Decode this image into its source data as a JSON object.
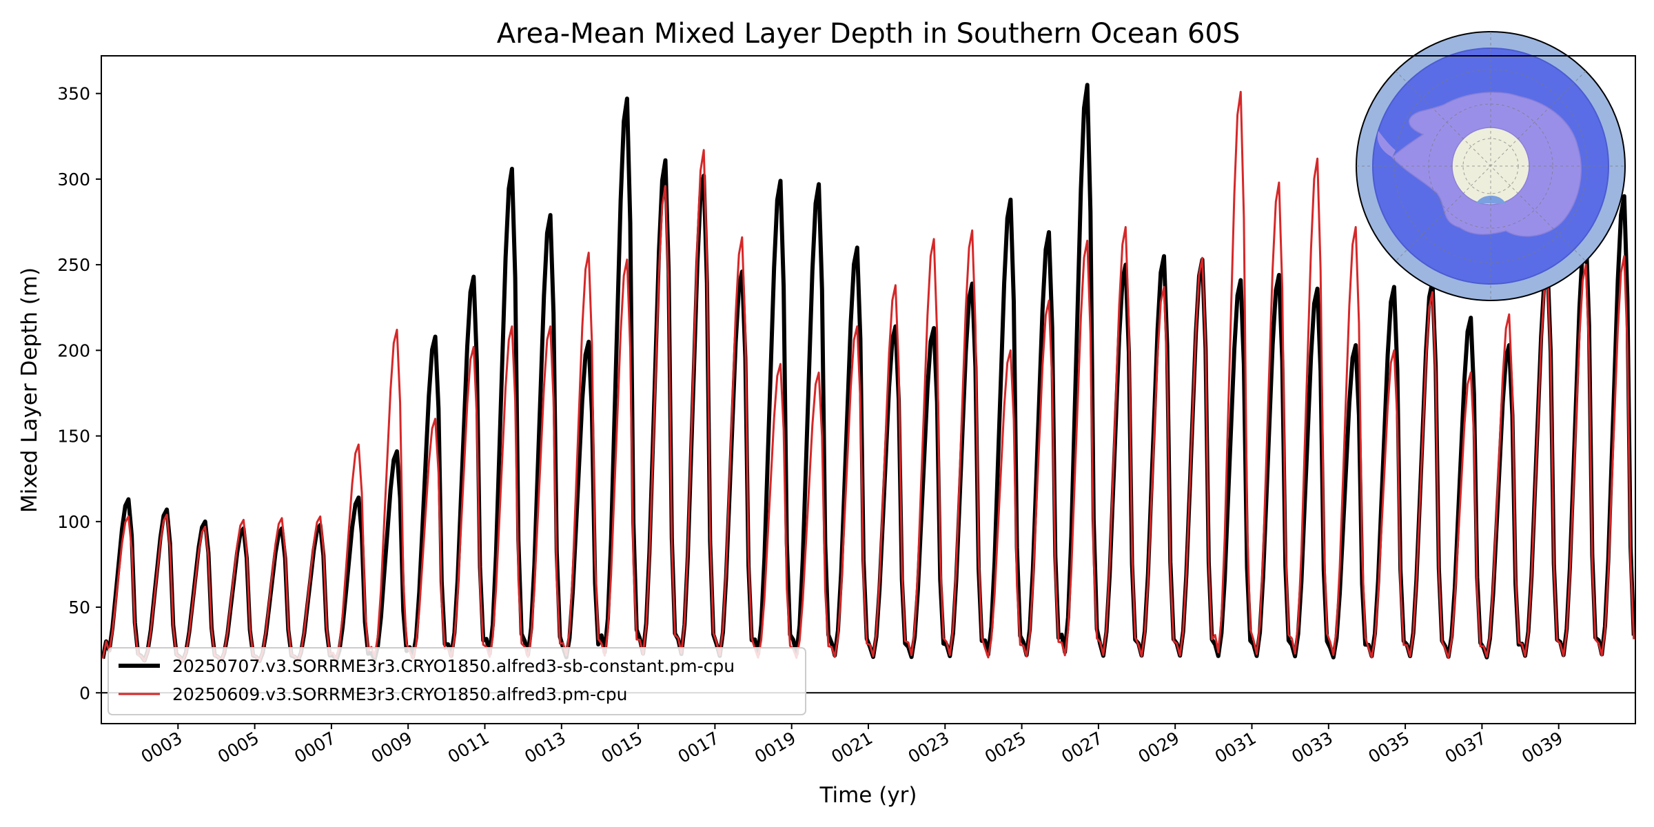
{
  "chart_data": {
    "type": "line",
    "title": "Area-Mean Mixed Layer Depth in Southern Ocean 60S",
    "xlabel": "Time (yr)",
    "ylabel": "Mixed Layer Depth (m)",
    "xlim": [
      1.0,
      41.0
    ],
    "ylim": [
      -18,
      372
    ],
    "yticks": [
      0,
      50,
      100,
      150,
      200,
      250,
      300,
      350
    ],
    "xticks": [
      "0003",
      "0005",
      "0007",
      "0009",
      "0011",
      "0013",
      "0015",
      "0017",
      "0019",
      "0021",
      "0023",
      "0025",
      "0027",
      "0029",
      "0031",
      "0033",
      "0035",
      "0037",
      "0039"
    ],
    "xtick_values": [
      3,
      5,
      7,
      9,
      11,
      13,
      15,
      17,
      19,
      21,
      23,
      25,
      27,
      29,
      31,
      33,
      35,
      37,
      39
    ],
    "zero_line": 0,
    "legend_position": "lower-left",
    "inset": "south-polar-map-antarctica",
    "colors": {
      "series1": "#000000",
      "series2": "#d62728",
      "ocean": "#5a6de6",
      "ring": "#9cb6e0",
      "land": "#9a8fe8",
      "pole": "#eeeedc"
    },
    "annual_minimum_approx": 17,
    "annual_peaks_note": "annual maxima (m) per model year, estimated from the plot; curves are seasonal cycles between these peaks and the annual minimum",
    "series": [
      {
        "name": "20250707.v3.SORRME3r3.CRYO1850.alfred3-sb-constant.pm-cpu",
        "color": "#000000",
        "linewidth": "thick",
        "annual_peaks": [
          113,
          107,
          100,
          96,
          96,
          98,
          114,
          141,
          208,
          243,
          306,
          279,
          205,
          347,
          311,
          302,
          246,
          299,
          297,
          260,
          214,
          213,
          239,
          288,
          269,
          355,
          250,
          255,
          253,
          241,
          244,
          236,
          203,
          237,
          240,
          219,
          203,
          250,
          270,
          290
        ]
      },
      {
        "name": "20250609.v3.SORRME3r3.CRYO1850.alfred3.pm-cpu",
        "color": "#d62728",
        "linewidth": "thin",
        "annual_peaks": [
          103,
          104,
          97,
          101,
          102,
          103,
          145,
          212,
          160,
          202,
          214,
          214,
          257,
          253,
          296,
          317,
          266,
          192,
          187,
          214,
          238,
          265,
          270,
          200,
          229,
          264,
          272,
          237,
          254,
          351,
          298,
          312,
          272,
          200,
          234,
          187,
          221,
          245,
          250,
          255
        ]
      }
    ]
  }
}
